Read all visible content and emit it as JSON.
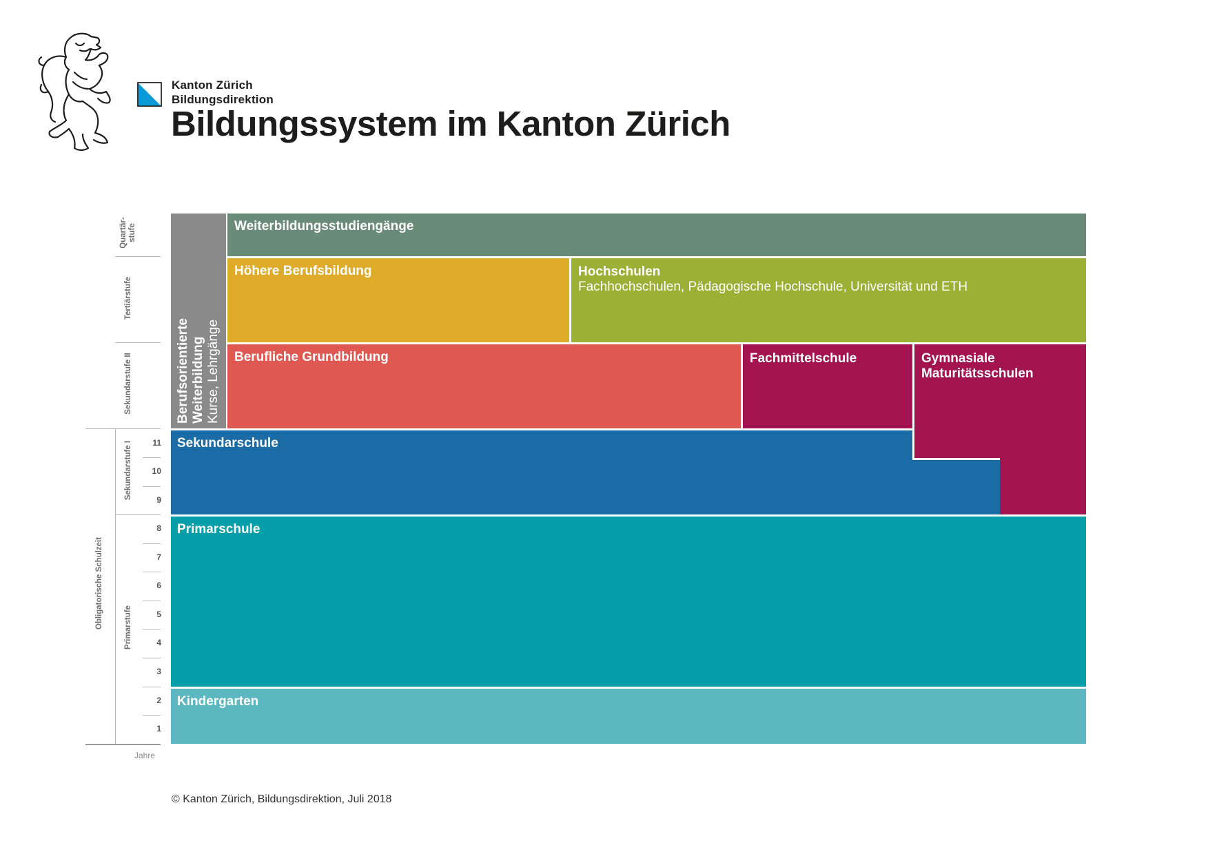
{
  "header": {
    "org_line1": "Kanton Zürich",
    "org_line2": "Bildungsdirektion",
    "title": "Bildungssystem im Kanton Zürich",
    "flag_icon": "zurich-flag-icon",
    "logo_icon": "zurich-lion-icon",
    "flag_colors": [
      "#ffffff",
      "#0a9ad8"
    ]
  },
  "blocks": {
    "weiterbildungsstudiengaenge": {
      "name": "Weiterbildungsstudiengänge",
      "color": "#6a8b78"
    },
    "hoehere_berufsbildung": {
      "name": "Höhere Berufsbildung",
      "color": "#dfab28"
    },
    "hochschulen": {
      "name": "Hochschulen",
      "sub": "Fachhochschulen, Pädagogische Hochschule, Universität und ETH",
      "color": "#9bb034"
    },
    "berufliche_grundbildung": {
      "name": "Berufliche Grundbildung",
      "color": "#df5952"
    },
    "fachmittelschule": {
      "name": "Fachmittelschule",
      "color": "#a3134f"
    },
    "gymnasiale": {
      "name1": "Gymnasiale",
      "name2": "Maturitätsschulen",
      "color": "#a3134f"
    },
    "sekundarschule": {
      "name": "Sekundarschule",
      "color": "#1b6ba7"
    },
    "primarschule": {
      "name": "Primarschule",
      "color": "#059ea9"
    },
    "kindergarten": {
      "name": "Kindergarten",
      "color": "#5cb8c0"
    },
    "berufsorientierte": {
      "name1": "Berufsorientierte",
      "name2": "Weiterbildung",
      "sub": "Kurse, Lehrgänge",
      "color": "#8a8a8a"
    }
  },
  "stages": {
    "quartaer_1": "Quartär-",
    "quartaer_2": "stufe",
    "tertiaer": "Tertiärstufe",
    "sek2": "Sekundarstufe II",
    "sek1": "Sekundarstufe I",
    "primar": "Primarstufe",
    "obligatorisch": "Obligatorische Schulzeit"
  },
  "years": [
    "11",
    "10",
    "9",
    "8",
    "7",
    "6",
    "5",
    "4",
    "3",
    "2",
    "1"
  ],
  "years_label": "Jahre",
  "footer": "© Kanton Zürich, Bildungsdirektion, Juli 2018"
}
